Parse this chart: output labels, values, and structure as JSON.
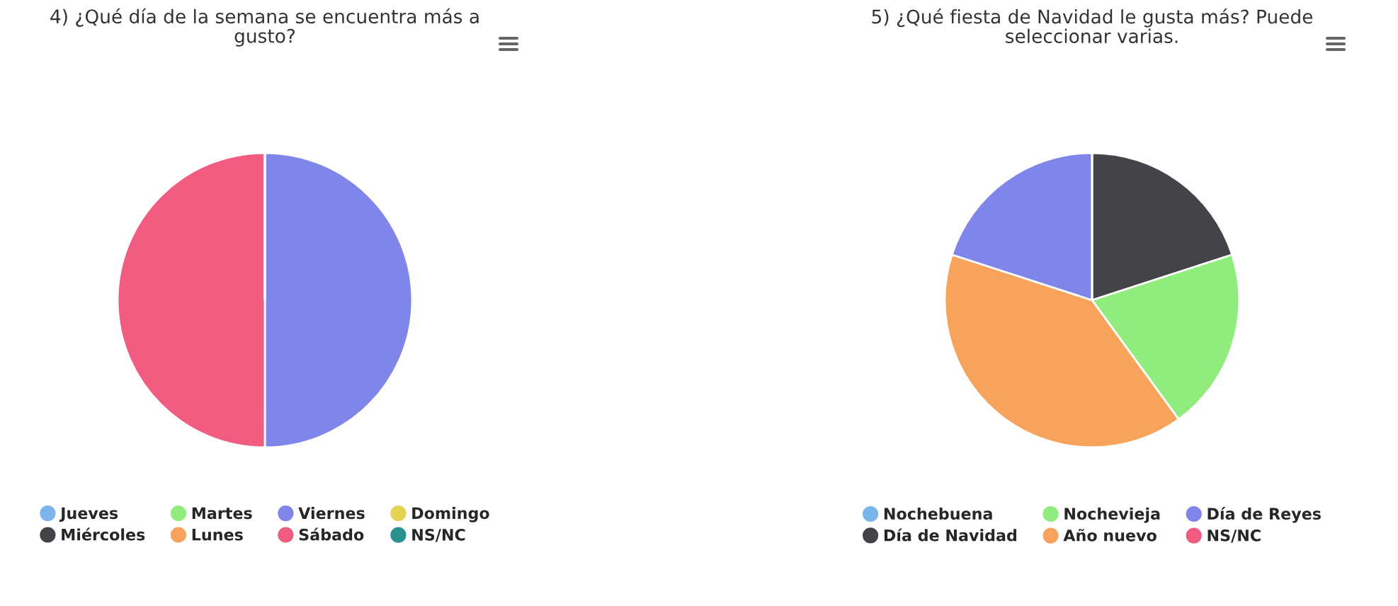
{
  "chart_data": [
    {
      "type": "pie",
      "title": "4) ¿Qué día de la semana se encuentra más a gusto?",
      "categories": [
        "Jueves",
        "Miércoles",
        "Martes",
        "Lunes",
        "Viernes",
        "Sábado",
        "Domingo",
        "NS/NC"
      ],
      "values": [
        0,
        0,
        0,
        0,
        50,
        50,
        0,
        0
      ],
      "colors": [
        "#7cb5ec",
        "#434348",
        "#90ed7d",
        "#f7a35c",
        "#8085e9",
        "#f15c80",
        "#e4d354",
        "#2b908f"
      ],
      "legend": "bottom"
    },
    {
      "type": "pie",
      "title": "5) ¿Qué fiesta de Navidad le gusta más? Puede seleccionar varias.",
      "categories": [
        "Nochebuena",
        "Día de Navidad",
        "Nochevieja",
        "Año nuevo",
        "Día de Reyes",
        "NS/NC"
      ],
      "values": [
        0,
        20,
        20,
        40,
        20,
        0
      ],
      "colors": [
        "#7cb5ec",
        "#434348",
        "#90ed7d",
        "#f7a35c",
        "#8085e9",
        "#f15c80"
      ],
      "legend": "bottom"
    }
  ]
}
